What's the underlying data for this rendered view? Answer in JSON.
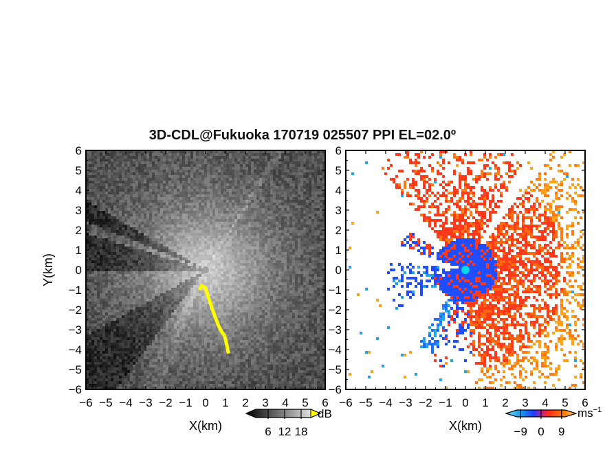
{
  "figure": {
    "title": "3D-CDL@Fukuoka 170719 025507 PPI EL=02.0º"
  },
  "chart_data": [
    {
      "type": "heatmap",
      "xlabel": "X(km)",
      "ylabel": "Y(km)",
      "xlim": [
        -6,
        6
      ],
      "ylim": [
        -6,
        6
      ],
      "ticks": [
        -6,
        -5,
        -4,
        -3,
        -2,
        -1,
        0,
        1,
        2,
        3,
        4,
        5,
        6
      ],
      "colorbar": {
        "unit": "dB",
        "tick_labels": [
          "6",
          "12",
          "18"
        ],
        "tick_values": [
          6,
          12,
          18
        ],
        "range": [
          0,
          24
        ],
        "colormap": "grayscale"
      },
      "highlight_color": "#ffff00",
      "notes": "grayscale SNR PPI field; darker blocked sectors toward west/southwest; yellow echo line near x=0 to 1.2 km, y=-1 to -4.4 km"
    },
    {
      "type": "heatmap",
      "xlabel": "X(km)",
      "ylabel": "",
      "xlim": [
        -6,
        6
      ],
      "ylim": [
        -6,
        6
      ],
      "ticks": [
        -6,
        -5,
        -4,
        -3,
        -2,
        -1,
        0,
        1,
        2,
        3,
        4,
        5,
        6
      ],
      "colorbar": {
        "unit": "ms",
        "unit_exponent": "−1",
        "tick_labels": [
          "−9",
          "0",
          "9"
        ],
        "tick_values": [
          -9,
          0,
          9
        ],
        "range": [
          -13,
          13
        ],
        "colormap": "doppler"
      },
      "site_marker_color": "#00d8e8",
      "notes": "Doppler velocity PPI; red/orange (receding) to north, east and south; blue (approaching) toward west and near radar"
    }
  ]
}
